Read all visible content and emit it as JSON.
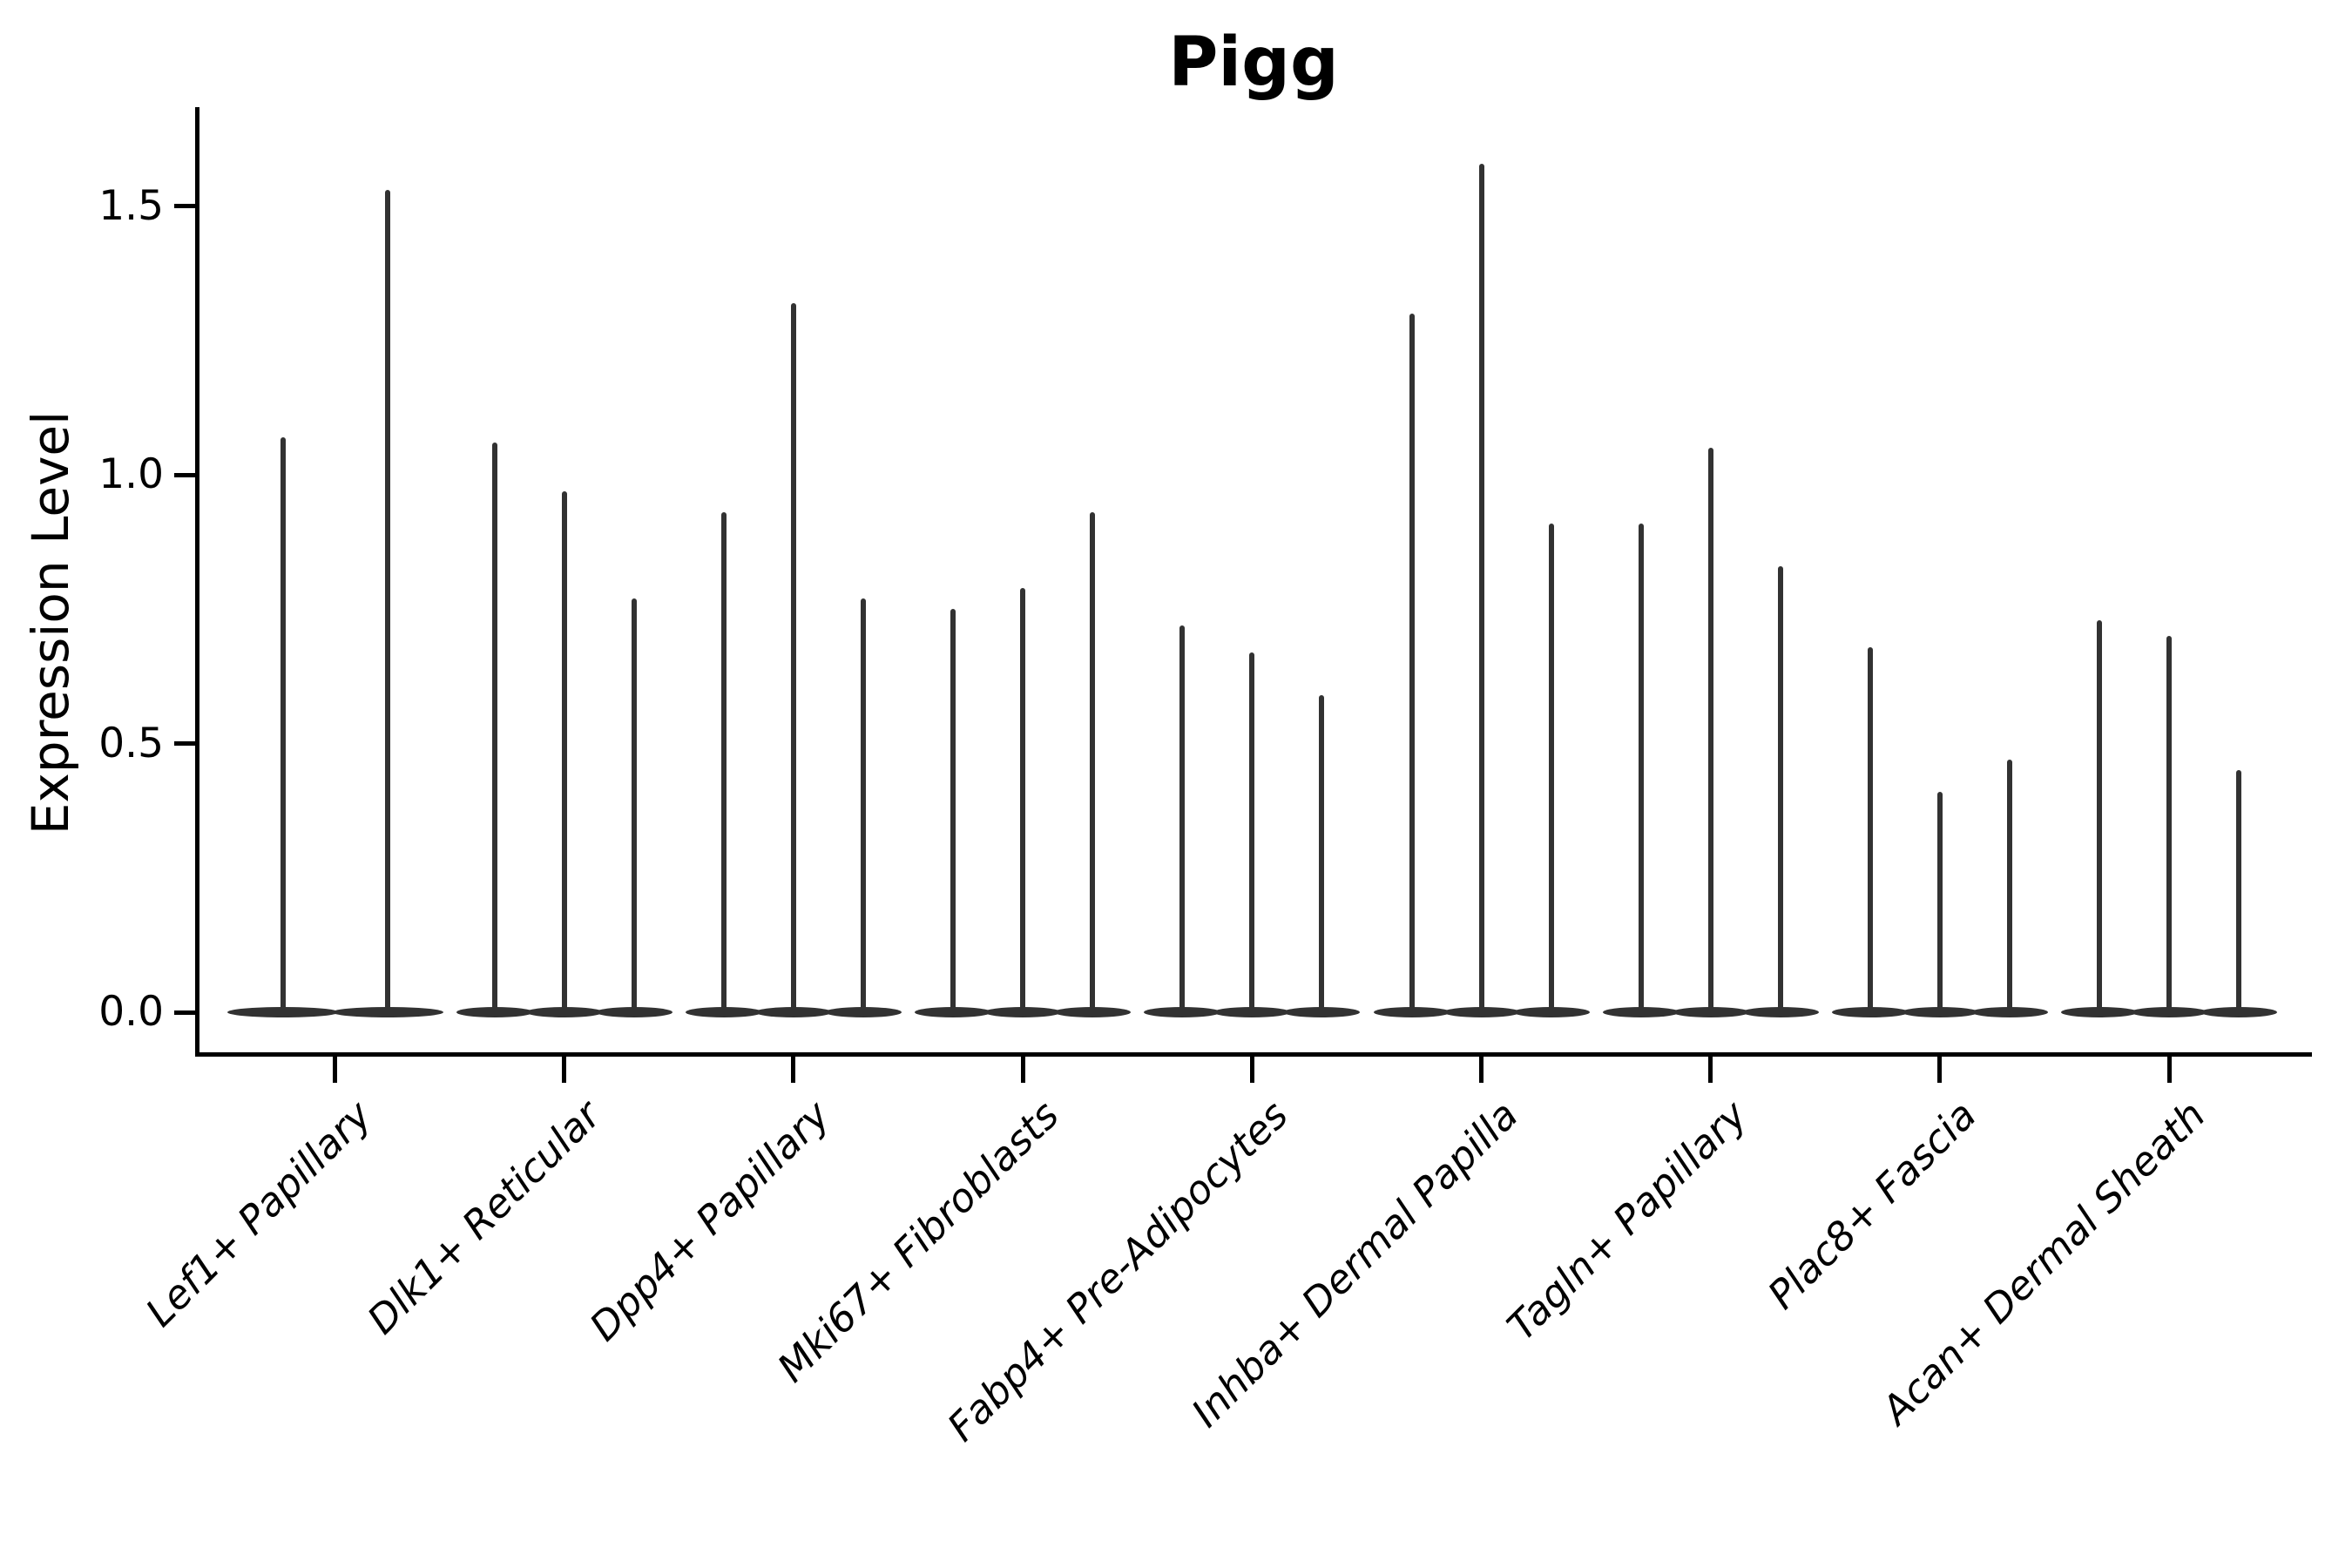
{
  "title": "Pigg",
  "y_axis": {
    "label": "Expression Level",
    "tick_labels": [
      "0.0",
      "0.5",
      "1.0",
      "1.5"
    ],
    "tick_values": [
      0,
      0.5,
      1.0,
      1.5
    ]
  },
  "colors": {
    "violin": "#323232",
    "axis": "#000000",
    "text": "#000000",
    "background": "#ffffff"
  },
  "chart_data": {
    "type": "violin",
    "title": "Pigg",
    "xlabel": "",
    "ylabel": "Expression Level",
    "grid": false,
    "legend": "none",
    "ylim": [
      -0.07,
      1.69
    ],
    "yticks": [
      0,
      0.5,
      1.0,
      1.5
    ],
    "categories": [
      "Lef1+ Papillary",
      "Dlk1+ Reticular",
      "Dpp4+ Papillary",
      "Mki67+ Fibroblasts",
      "Fabp4+ Pre-Adipocytes",
      "Inhba+ Dermal Papilla",
      "Tagln+ Papillary",
      "Plac8+ Fascia",
      "Acan+ Dermal Sheath"
    ],
    "series": [
      {
        "category": "Lef1+ Papillary",
        "violin_peak_values": [
          1.07,
          1.53
        ]
      },
      {
        "category": "Dlk1+ Reticular",
        "violin_peak_values": [
          1.06,
          0.97,
          0.77
        ]
      },
      {
        "category": "Dpp4+ Papillary",
        "violin_peak_values": [
          0.93,
          1.32,
          0.77
        ]
      },
      {
        "category": "Mki67+ Fibroblasts",
        "violin_peak_values": [
          0.75,
          0.79,
          0.93
        ]
      },
      {
        "category": "Fabp4+ Pre-Adipocytes",
        "violin_peak_values": [
          0.72,
          0.67,
          0.59
        ]
      },
      {
        "category": "Inhba+ Dermal Papilla",
        "violin_peak_values": [
          1.3,
          1.58,
          0.91
        ]
      },
      {
        "category": "Tagln+ Papillary",
        "violin_peak_values": [
          0.91,
          1.05,
          0.83
        ]
      },
      {
        "category": "Plac8+ Fascia",
        "violin_peak_values": [
          0.68,
          0.41,
          0.47
        ]
      },
      {
        "category": "Acan+ Dermal Sheath",
        "violin_peak_values": [
          0.73,
          0.7,
          0.45
        ]
      }
    ],
    "baseline_value": 0.0,
    "violin_shape_note": "each violin is a flat lens at 0 with a thin density spike up to its peak value"
  }
}
